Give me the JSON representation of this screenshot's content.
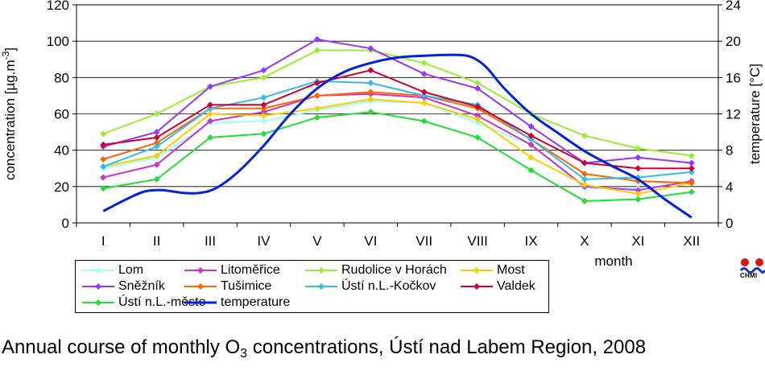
{
  "chart_data": {
    "type": "line",
    "categories": [
      "I",
      "II",
      "III",
      "IV",
      "V",
      "VI",
      "VII",
      "VIII",
      "IX",
      "X",
      "XI",
      "XII"
    ],
    "xlabel": "month",
    "ylabel": "concentration [µg.m-3]",
    "ylabel_parts": [
      "concentration [µg.m",
      "-3",
      "]"
    ],
    "y2label": "temperature [°C]",
    "ylim": [
      0,
      120
    ],
    "y_ticks": [
      0,
      20,
      40,
      60,
      80,
      100,
      120
    ],
    "y2lim": [
      0,
      24
    ],
    "y2_ticks": [
      0,
      4,
      8,
      12,
      16,
      20,
      24
    ],
    "grid": true,
    "legend_position": "bottom",
    "series": [
      {
        "name": "Lom",
        "color": "#99ffff",
        "axis": "left",
        "values": [
          30,
          36,
          55,
          56,
          62,
          67,
          66,
          55,
          43,
          19,
          19,
          22
        ]
      },
      {
        "name": "Litoměřice",
        "color": "#cc33cc",
        "axis": "left",
        "values": [
          25,
          32,
          56,
          61,
          70,
          71,
          69,
          59,
          43,
          20,
          18,
          23
        ]
      },
      {
        "name": "Rudolice v Horách",
        "color": "#99ee33",
        "axis": "left",
        "values": [
          49,
          60,
          75,
          80,
          95,
          95,
          88,
          77,
          60,
          48,
          41,
          37
        ]
      },
      {
        "name": "Most",
        "color": "#ffcc00",
        "axis": "left",
        "values": [
          31,
          37,
          60,
          59,
          63,
          68,
          66,
          57,
          36,
          21,
          16,
          22
        ]
      },
      {
        "name": "Sněžník",
        "color": "#9933ff",
        "axis": "left",
        "values": [
          42,
          50,
          75,
          84,
          101,
          96,
          82,
          74,
          53,
          33,
          36,
          33
        ]
      },
      {
        "name": "Tušimice",
        "color": "#ff6600",
        "axis": "left",
        "values": [
          35,
          44,
          63,
          63,
          70,
          72,
          70,
          63,
          46,
          27,
          23,
          22
        ]
      },
      {
        "name": "Ústí n.L.-Kočkov",
        "color": "#33bbee",
        "axis": "left",
        "values": [
          31,
          42,
          63,
          69,
          78,
          77,
          70,
          65,
          46,
          24,
          25,
          28
        ]
      },
      {
        "name": "Valdek",
        "color": "#cc0033",
        "axis": "left",
        "values": [
          43,
          47,
          65,
          65,
          77,
          84,
          72,
          64,
          48,
          33,
          30,
          30
        ]
      },
      {
        "name": "Ústí n.L.-město",
        "color": "#22dd33",
        "axis": "left",
        "values": [
          19,
          24,
          47,
          49,
          58,
          61,
          56,
          47,
          29,
          12,
          13,
          17
        ]
      },
      {
        "name": "temperature",
        "color": "#0022dd",
        "axis": "right",
        "x": [
          1,
          1.5,
          1.8,
          2.1,
          2.5,
          2.8,
          3.1,
          3.5,
          4,
          4.5,
          5,
          5.5,
          6,
          6.5,
          7,
          7.5,
          7.8,
          8,
          8.2,
          8.5,
          9,
          9.5,
          10,
          10.5,
          11,
          11.5,
          12
        ],
        "values": [
          1.3,
          2.8,
          3.5,
          3.6,
          3.3,
          3.3,
          3.8,
          5.5,
          8.5,
          12,
          14.8,
          16.6,
          17.6,
          18.2,
          18.4,
          18.5,
          18.4,
          17.9,
          16.9,
          14.8,
          12,
          9.9,
          7.9,
          6.3,
          4.8,
          2.6,
          0.6
        ]
      }
    ]
  },
  "caption": {
    "text_before": "Annual course of monthly O",
    "sub": "3",
    "text_after": " concentrations, Ústí nad Labem Region, 2008"
  },
  "logo": {
    "text": "CHMI",
    "colors": [
      "#dd1111",
      "#1133cc"
    ]
  }
}
